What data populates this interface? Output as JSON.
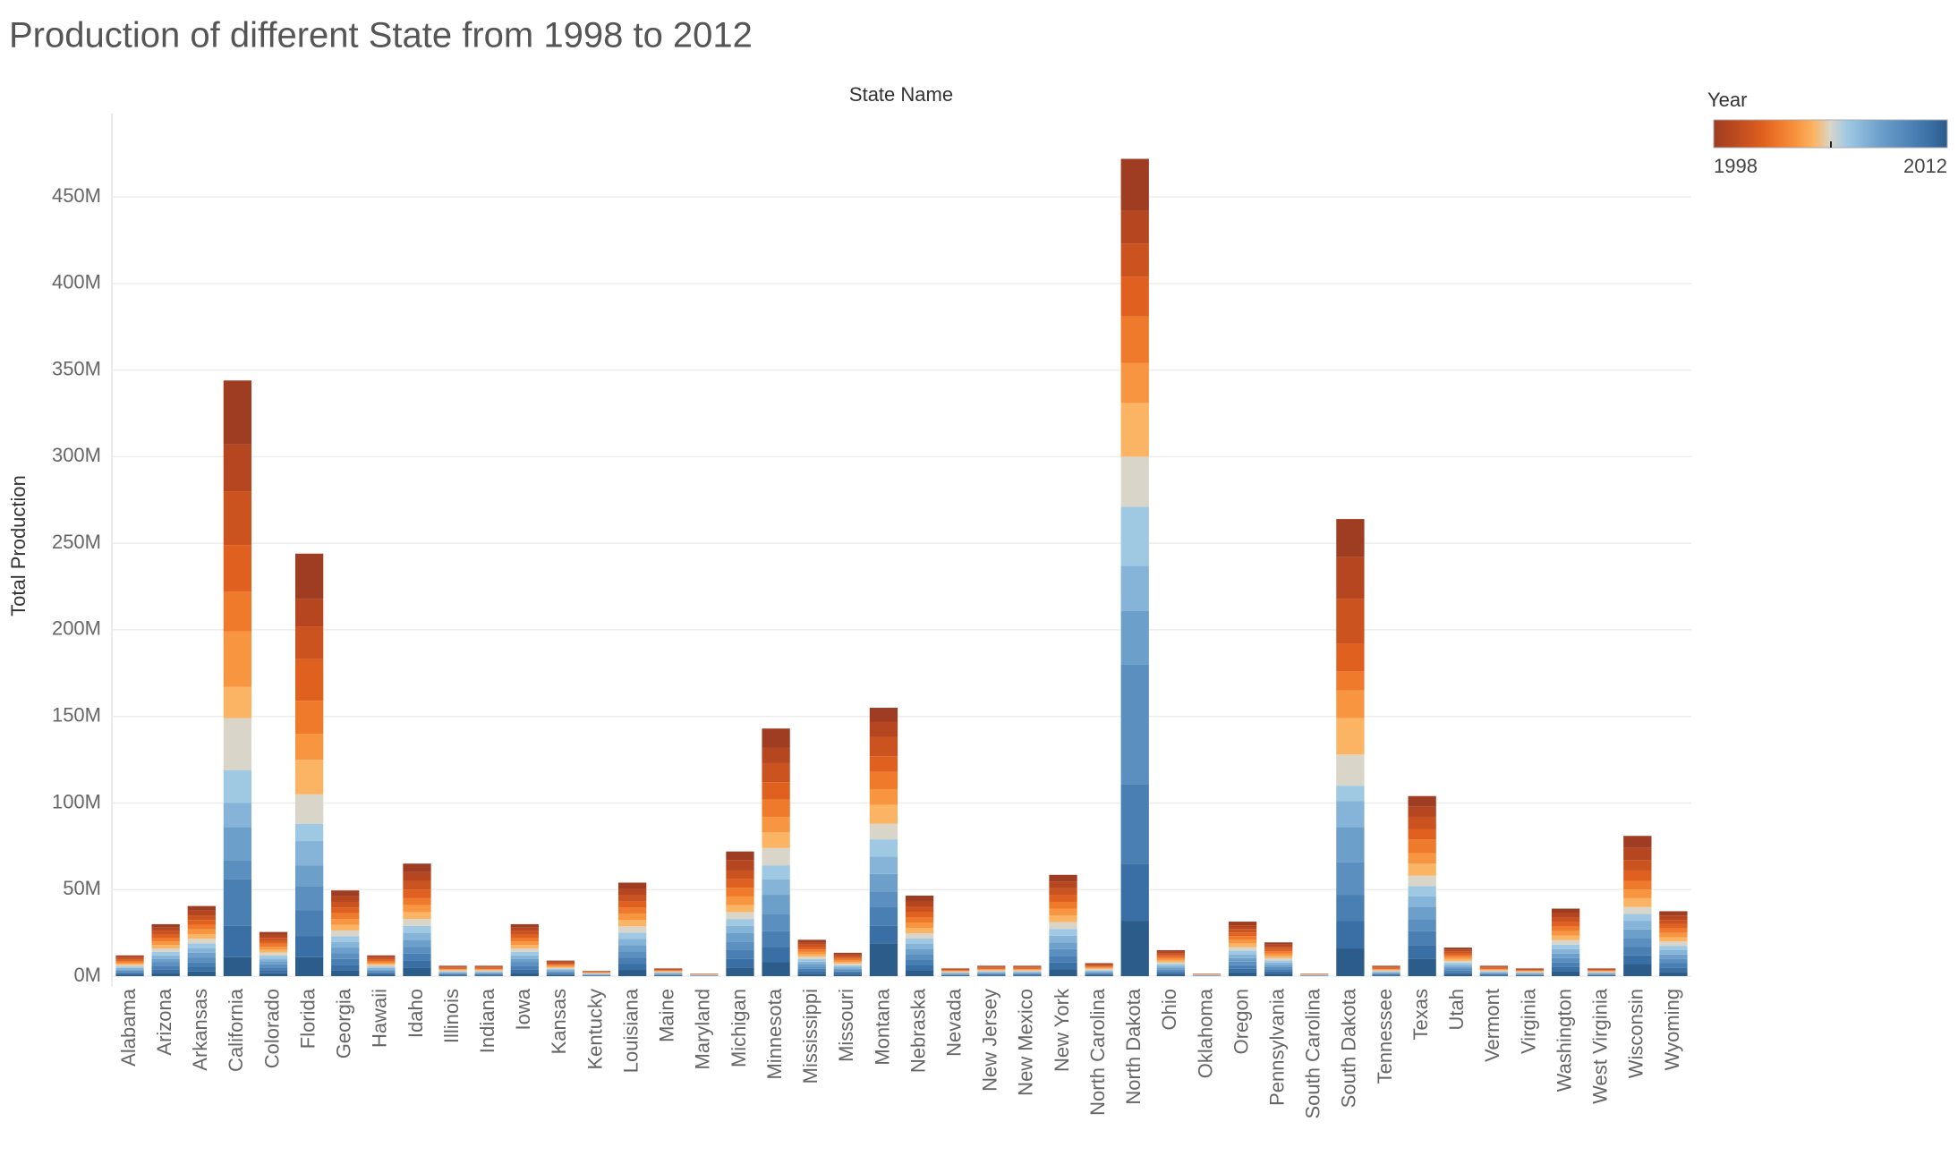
{
  "chart_data": {
    "type": "stacked_bar",
    "title": "Production of different State from 1998 to 2012",
    "column_header": "State Name",
    "y_label": "Total Production",
    "color_legend": {
      "title": "Year",
      "labels": [
        "1998",
        "2012"
      ]
    },
    "categories": [
      "Alabama",
      "Arizona",
      "Arkansas",
      "California",
      "Colorado",
      "Florida",
      "Georgia",
      "Hawaii",
      "Idaho",
      "Illinois",
      "Indiana",
      "Iowa",
      "Kansas",
      "Kentucky",
      "Louisiana",
      "Maine",
      "Maryland",
      "Michigan",
      "Minnesota",
      "Mississippi",
      "Missouri",
      "Montana",
      "Nebraska",
      "Nevada",
      "New Jersey",
      "New Mexico",
      "New York",
      "North Carolina",
      "North Dakota",
      "Ohio",
      "Oklahoma",
      "Oregon",
      "Pennsylvania",
      "South Carolina",
      "South Dakota",
      "Tennessee",
      "Texas",
      "Utah",
      "Vermont",
      "Virginia",
      "Washington",
      "West Virginia",
      "Wisconsin",
      "Wyoming"
    ],
    "series": [
      {
        "color": "#9e3d22",
        "values": [
          800000.0,
          2000000.0,
          2700000.0,
          37000000.0,
          1700000.0,
          26000000.0,
          3300000.0,
          800000.0,
          5000000.0,
          400000.0,
          400000.0,
          2000000.0,
          600000.0,
          200000.0,
          3600000.0,
          300000.0,
          100000.0,
          5000000.0,
          11000000.0,
          1400000.0,
          900000.0,
          8000000.0,
          3100000.0,
          300000.0,
          400000.0,
          400000.0,
          3900000.0,
          500000.0,
          30000000.0,
          1000000.0,
          100000.0,
          2100000.0,
          1300000.0,
          100000.0,
          22000000.0,
          400000.0,
          6000000.0,
          1100000.0,
          400000.0,
          300000.0,
          2600000.0,
          300000.0,
          7000000.0,
          2500000.0
        ]
      },
      {
        "color": "#b5461f",
        "values": [
          800000.0,
          2000000.0,
          2700000.0,
          27000000.0,
          1700000.0,
          16000000.0,
          3300000.0,
          800000.0,
          5000000.0,
          400000.0,
          400000.0,
          2000000.0,
          600000.0,
          200000.0,
          3600000.0,
          300000.0,
          100000.0,
          6000000.0,
          9000000.0,
          1400000.0,
          900000.0,
          9000000.0,
          3100000.0,
          300000.0,
          400000.0,
          400000.0,
          3900000.0,
          500000.0,
          19000000.0,
          1000000.0,
          100000.0,
          2100000.0,
          1300000.0,
          100000.0,
          24000000.0,
          400000.0,
          6000000.0,
          1100000.0,
          400000.0,
          300000.0,
          2600000.0,
          300000.0,
          7000000.0,
          2500000.0
        ]
      },
      {
        "color": "#cb5320",
        "values": [
          800000.0,
          2000000.0,
          2700000.0,
          31000000.0,
          1700000.0,
          19000000.0,
          3300000.0,
          800000.0,
          5000000.0,
          400000.0,
          400000.0,
          2000000.0,
          600000.0,
          200000.0,
          3600000.0,
          300000.0,
          100000.0,
          5000000.0,
          11000000.0,
          1400000.0,
          900000.0,
          11000000.0,
          3100000.0,
          300000.0,
          400000.0,
          400000.0,
          3900000.0,
          500000.0,
          19000000.0,
          1000000.0,
          100000.0,
          2100000.0,
          1300000.0,
          100000.0,
          26000000.0,
          400000.0,
          7000000.0,
          1100000.0,
          400000.0,
          300000.0,
          2600000.0,
          300000.0,
          6000000.0,
          2500000.0
        ]
      },
      {
        "color": "#e0611f",
        "values": [
          800000.0,
          2000000.0,
          2700000.0,
          27000000.0,
          1700000.0,
          24000000.0,
          3300000.0,
          800000.0,
          5000000.0,
          400000.0,
          400000.0,
          2000000.0,
          600000.0,
          200000.0,
          3600000.0,
          300000.0,
          100000.0,
          5000000.0,
          10000000.0,
          1400000.0,
          900000.0,
          9000000.0,
          3100000.0,
          300000.0,
          400000.0,
          400000.0,
          3900000.0,
          500000.0,
          23000000.0,
          1000000.0,
          100000.0,
          2100000.0,
          1300000.0,
          100000.0,
          16000000.0,
          400000.0,
          6000000.0,
          1100000.0,
          400000.0,
          300000.0,
          2600000.0,
          300000.0,
          6000000.0,
          2500000.0
        ]
      },
      {
        "color": "#f07a2c",
        "values": [
          800000.0,
          2000000.0,
          2700000.0,
          23000000.0,
          1700000.0,
          19000000.0,
          3300000.0,
          800000.0,
          4000000.0,
          400000.0,
          400000.0,
          2000000.0,
          600000.0,
          200000.0,
          3600000.0,
          300000.0,
          100000.0,
          5000000.0,
          10000000.0,
          1400000.0,
          900000.0,
          10000000.0,
          3100000.0,
          300000.0,
          400000.0,
          400000.0,
          3900000.0,
          500000.0,
          27000000.0,
          1000000.0,
          100000.0,
          2100000.0,
          1300000.0,
          100000.0,
          11000000.0,
          400000.0,
          8000000.0,
          1100000.0,
          400000.0,
          300000.0,
          2600000.0,
          300000.0,
          5000000.0,
          2500000.0
        ]
      },
      {
        "color": "#f89540",
        "values": [
          800000.0,
          2000000.0,
          2700000.0,
          32000000.0,
          1700000.0,
          15000000.0,
          3300000.0,
          800000.0,
          4000000.0,
          400000.0,
          400000.0,
          2000000.0,
          600000.0,
          200000.0,
          3600000.0,
          300000.0,
          100000.0,
          5000000.0,
          9000000.0,
          1400000.0,
          900000.0,
          9000000.0,
          3100000.0,
          300000.0,
          400000.0,
          400000.0,
          3900000.0,
          500000.0,
          23000000.0,
          1000000.0,
          100000.0,
          2100000.0,
          1300000.0,
          100000.0,
          16000000.0,
          400000.0,
          6000000.0,
          1100000.0,
          400000.0,
          300000.0,
          2600000.0,
          300000.0,
          5000000.0,
          2500000.0
        ]
      },
      {
        "color": "#fbb463",
        "values": [
          800000.0,
          2000000.0,
          2700000.0,
          18000000.0,
          1700000.0,
          20000000.0,
          3300000.0,
          800000.0,
          4000000.0,
          400000.0,
          400000.0,
          2000000.0,
          600000.0,
          200000.0,
          3600000.0,
          300000.0,
          100000.0,
          4000000.0,
          9000000.0,
          1400000.0,
          900000.0,
          11000000.0,
          3100000.0,
          300000.0,
          400000.0,
          400000.0,
          3900000.0,
          500000.0,
          31000000.0,
          1000000.0,
          100000.0,
          2100000.0,
          1300000.0,
          100000.0,
          21000000.0,
          400000.0,
          7000000.0,
          1100000.0,
          400000.0,
          300000.0,
          2600000.0,
          300000.0,
          5000000.0,
          2500000.0
        ]
      },
      {
        "color": "#d9d5c9",
        "values": [
          800000.0,
          2000000.0,
          2700000.0,
          30000000.0,
          1700000.0,
          17000000.0,
          3300000.0,
          800000.0,
          4000000.0,
          400000.0,
          400000.0,
          2000000.0,
          600000.0,
          200000.0,
          3600000.0,
          300000.0,
          100000.0,
          4000000.0,
          10000000.0,
          1400000.0,
          900000.0,
          9000000.0,
          3100000.0,
          300000.0,
          400000.0,
          400000.0,
          3900000.0,
          500000.0,
          29000000.0,
          1000000.0,
          100000.0,
          2100000.0,
          1300000.0,
          100000.0,
          18000000.0,
          400000.0,
          6000000.0,
          1100000.0,
          400000.0,
          300000.0,
          2600000.0,
          300000.0,
          4000000.0,
          2500000.0
        ]
      },
      {
        "color": "#9fc8e3",
        "values": [
          800000.0,
          2000000.0,
          2700000.0,
          19000000.0,
          1700000.0,
          10000000.0,
          3300000.0,
          800000.0,
          4000000.0,
          400000.0,
          400000.0,
          2000000.0,
          600000.0,
          200000.0,
          3600000.0,
          300000.0,
          100000.0,
          4000000.0,
          8000000.0,
          1400000.0,
          900000.0,
          10000000.0,
          3100000.0,
          300000.0,
          400000.0,
          400000.0,
          3900000.0,
          500000.0,
          34000000.0,
          1000000.0,
          100000.0,
          2100000.0,
          1300000.0,
          100000.0,
          9000000.0,
          400000.0,
          6000000.0,
          1100000.0,
          400000.0,
          300000.0,
          2600000.0,
          300000.0,
          4000000.0,
          2500000.0
        ]
      },
      {
        "color": "#86b4d8",
        "values": [
          800000.0,
          2000000.0,
          2700000.0,
          14000000.0,
          1700000.0,
          14000000.0,
          3300000.0,
          800000.0,
          4000000.0,
          400000.0,
          400000.0,
          2000000.0,
          600000.0,
          200000.0,
          3600000.0,
          300000.0,
          100000.0,
          4000000.0,
          9000000.0,
          1400000.0,
          900000.0,
          10000000.0,
          3100000.0,
          300000.0,
          400000.0,
          400000.0,
          3900000.0,
          500000.0,
          26000000.0,
          1000000.0,
          100000.0,
          2100000.0,
          1300000.0,
          100000.0,
          15000000.0,
          400000.0,
          6000000.0,
          1100000.0,
          400000.0,
          300000.0,
          2600000.0,
          300000.0,
          5000000.0,
          2500000.0
        ]
      },
      {
        "color": "#6c9fca",
        "values": [
          800000.0,
          2000000.0,
          2700000.0,
          19000000.0,
          1700000.0,
          12000000.0,
          3300000.0,
          800000.0,
          4000000.0,
          400000.0,
          400000.0,
          2000000.0,
          600000.0,
          200000.0,
          3600000.0,
          300000.0,
          100000.0,
          5000000.0,
          11000000.0,
          1400000.0,
          900000.0,
          10000000.0,
          3100000.0,
          300000.0,
          400000.0,
          400000.0,
          3900000.0,
          500000.0,
          31000000.0,
          1000000.0,
          100000.0,
          2100000.0,
          1300000.0,
          100000.0,
          20000000.0,
          400000.0,
          7000000.0,
          1100000.0,
          400000.0,
          300000.0,
          2600000.0,
          300000.0,
          5000000.0,
          2500000.0
        ]
      },
      {
        "color": "#5a8fc0",
        "values": [
          800000.0,
          2000000.0,
          2700000.0,
          11000000.0,
          1700000.0,
          14000000.0,
          3300000.0,
          800000.0,
          4000000.0,
          400000.0,
          400000.0,
          2000000.0,
          600000.0,
          200000.0,
          3600000.0,
          300000.0,
          100000.0,
          5000000.0,
          10000000.0,
          1400000.0,
          900000.0,
          9000000.0,
          3100000.0,
          300000.0,
          400000.0,
          400000.0,
          3900000.0,
          500000.0,
          69000000.0,
          1000000.0,
          100000.0,
          2100000.0,
          1300000.0,
          100000.0,
          19000000.0,
          400000.0,
          7000000.0,
          1100000.0,
          400000.0,
          300000.0,
          2600000.0,
          300000.0,
          5000000.0,
          2500000.0
        ]
      },
      {
        "color": "#4a7fb3",
        "values": [
          800000.0,
          2000000.0,
          2700000.0,
          27000000.0,
          1700000.0,
          15000000.0,
          3300000.0,
          800000.0,
          4000000.0,
          400000.0,
          400000.0,
          2000000.0,
          600000.0,
          200000.0,
          3600000.0,
          300000.0,
          100000.0,
          5000000.0,
          9000000.0,
          1400000.0,
          900000.0,
          11000000.0,
          3100000.0,
          300000.0,
          400000.0,
          400000.0,
          3900000.0,
          500000.0,
          46000000.0,
          1000000.0,
          100000.0,
          2100000.0,
          1300000.0,
          100000.0,
          15000000.0,
          400000.0,
          8000000.0,
          1100000.0,
          400000.0,
          300000.0,
          2600000.0,
          300000.0,
          5000000.0,
          2500000.0
        ]
      },
      {
        "color": "#3a6fa5",
        "values": [
          800000.0,
          2000000.0,
          2700000.0,
          18000000.0,
          1700000.0,
          12000000.0,
          3300000.0,
          800000.0,
          4000000.0,
          400000.0,
          400000.0,
          2000000.0,
          600000.0,
          200000.0,
          3600000.0,
          300000.0,
          100000.0,
          5000000.0,
          9000000.0,
          1400000.0,
          900000.0,
          10000000.0,
          3100000.0,
          300000.0,
          400000.0,
          400000.0,
          3900000.0,
          500000.0,
          33000000.0,
          1000000.0,
          100000.0,
          2100000.0,
          1300000.0,
          100000.0,
          16000000.0,
          400000.0,
          8000000.0,
          1100000.0,
          400000.0,
          300000.0,
          2600000.0,
          300000.0,
          5000000.0,
          2500000.0
        ]
      },
      {
        "color": "#2b5c8a",
        "values": [
          800000.0,
          2000000.0,
          2700000.0,
          11000000.0,
          1700000.0,
          11000000.0,
          3300000.0,
          800000.0,
          5000000.0,
          400000.0,
          400000.0,
          2000000.0,
          600000.0,
          200000.0,
          3600000.0,
          300000.0,
          100000.0,
          5000000.0,
          8000000.0,
          1400000.0,
          900000.0,
          19000000.0,
          3100000.0,
          300000.0,
          400000.0,
          400000.0,
          3900000.0,
          500000.0,
          32000000.0,
          1000000.0,
          100000.0,
          2100000.0,
          1300000.0,
          100000.0,
          16000000.0,
          400000.0,
          10000000.0,
          1100000.0,
          400000.0,
          300000.0,
          2600000.0,
          300000.0,
          7000000.0,
          2500000.0
        ]
      }
    ],
    "ylim": [
      0,
      495000000.0
    ],
    "yticks": [
      {
        "value": 0,
        "label": "0M"
      },
      {
        "value": 50000000.0,
        "label": "50M"
      },
      {
        "value": 100000000.0,
        "label": "100M"
      },
      {
        "value": 150000000.0,
        "label": "150M"
      },
      {
        "value": 200000000.0,
        "label": "200M"
      },
      {
        "value": 250000000.0,
        "label": "250M"
      },
      {
        "value": 300000000.0,
        "label": "300M"
      },
      {
        "value": 350000000.0,
        "label": "350M"
      },
      {
        "value": 400000000.0,
        "label": "400M"
      },
      {
        "value": 450000000.0,
        "label": "450M"
      }
    ],
    "grid": true
  }
}
